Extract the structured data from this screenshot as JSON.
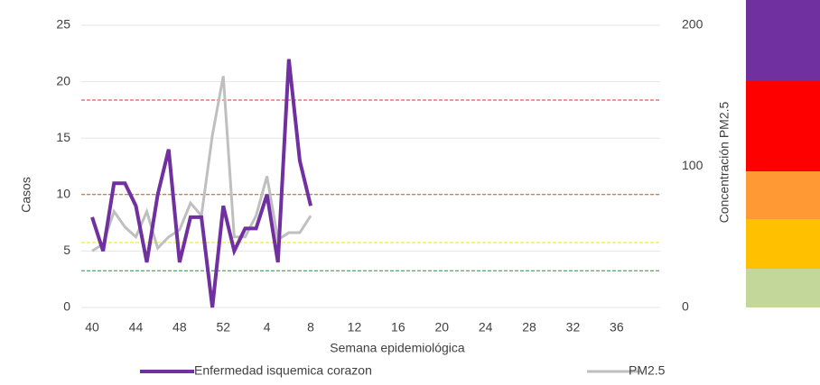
{
  "chart_data": {
    "type": "line",
    "x_label": "Semana epidemiológica",
    "y_label": "Casos",
    "y2_label": "Concentración PM2.5",
    "categories": [
      "40",
      null,
      null,
      null,
      "44",
      null,
      null,
      null,
      "48",
      null,
      null,
      null,
      "52",
      null,
      null,
      null,
      "4",
      null,
      null,
      null,
      "8",
      null,
      null,
      null,
      "12",
      null,
      null,
      null,
      "16",
      null,
      null,
      null,
      "20",
      null,
      null,
      null,
      "24",
      null,
      null,
      null,
      "28",
      null,
      null,
      null,
      "32",
      null,
      null,
      null,
      "36",
      null,
      null,
      null,
      null
    ],
    "series": [
      {
        "name": "Enfermedad isquemica corazon",
        "color": "#7030a0",
        "axis": "y",
        "values": [
          8,
          5,
          11,
          11,
          9,
          4,
          10,
          14,
          4,
          8,
          8,
          0,
          9,
          5,
          7,
          7,
          10,
          4,
          22,
          13,
          9,
          null,
          null,
          null,
          null,
          null,
          null,
          null,
          null,
          null,
          null,
          null,
          null,
          null,
          null,
          null,
          null,
          null,
          null,
          null,
          null,
          null,
          null,
          null,
          null,
          null,
          null,
          null,
          null,
          null,
          null,
          null,
          null
        ]
      },
      {
        "name": "PM2.5",
        "color": "#bfbfbf",
        "axis": "y2",
        "values": [
          40,
          45,
          68,
          57,
          50,
          68,
          42,
          50,
          55,
          74,
          65,
          122,
          164,
          50,
          50,
          65,
          93,
          48,
          53,
          53,
          65,
          null,
          null,
          null,
          null,
          null,
          null,
          null,
          null,
          null,
          null,
          null,
          null,
          null,
          null,
          null,
          null,
          null,
          null,
          null,
          null,
          null,
          null,
          null,
          null,
          null,
          null,
          null,
          null,
          null,
          null,
          null,
          null
        ]
      }
    ],
    "thresholds": [
      {
        "value": 147,
        "color": "#e03030"
      },
      {
        "value": 80,
        "color": "#c55a11"
      },
      {
        "value": 46,
        "color": "#e8e800"
      },
      {
        "value": 26,
        "color": "#3a8a3a"
      }
    ],
    "ylim": [
      0,
      25
    ],
    "yticks": [
      0,
      5,
      10,
      15,
      20,
      25
    ],
    "y2lim": [
      0,
      200
    ],
    "y2ticks": [
      0,
      100,
      200
    ],
    "grid": true
  }
}
